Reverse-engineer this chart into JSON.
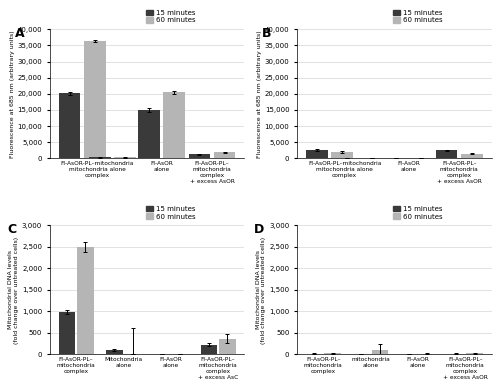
{
  "A": {
    "title": "A",
    "ylabel": "Fluorescence at 685 nm (arbitrary units)",
    "ylim": [
      0,
      40000
    ],
    "yticks": [
      0,
      5000,
      10000,
      15000,
      20000,
      25000,
      30000,
      35000,
      40000
    ],
    "groups": [
      {
        "label": "Fl-AsOR-PL–mitochondria",
        "bar15": 20200,
        "bar60": 36500,
        "err15": 400,
        "err60": 300
      },
      {
        "label": "mitochondria alone",
        "bar15": 300,
        "bar60": 300,
        "err15": 50,
        "err60": 50
      },
      {
        "label": "Fl-AsOR\nalone",
        "bar15": 15000,
        "bar60": 20500,
        "err15": 500,
        "err60": 500
      },
      {
        "label": "Fl-AsOR-PL–\nmitochondria\ncomplex\n+ excess AsOR",
        "bar15": 1300,
        "bar60": 1900,
        "err15": 150,
        "err60": 150
      }
    ],
    "group_labels": [
      "Fl-AsOR-PL–mitochondria\nmitochondria alone\ncomplex",
      "Fl-AsOR\nalone",
      "Fl-AsOR-PL–\nmitochondria\ncomplex\n+ excess AsOR"
    ],
    "group_positions": [
      0,
      1,
      2,
      3
    ],
    "xtick_positions": [
      0.5,
      2,
      3
    ],
    "xtick_labels": [
      "Fl-AsOR-PL–mitochondria\nmitochondria alone\ncomplex",
      "Fl-AsOR\nalone",
      "Fl-AsOR-PL–\nmitochondria\ncomplex\n+ excess AsOR"
    ]
  },
  "B": {
    "title": "B",
    "ylabel": "Fluorescence at 685 nm (arbitrary units)",
    "ylim": [
      0,
      40000
    ],
    "yticks": [
      0,
      5000,
      10000,
      15000,
      20000,
      25000,
      30000,
      35000,
      40000
    ],
    "groups": [
      {
        "label": "Fl-AsOR-PL–mitochondria",
        "bar15": 2600,
        "bar60": 2000,
        "err15": 200,
        "err60": 200
      },
      {
        "label": "mitochondria alone",
        "bar15": 100,
        "bar60": 100,
        "err15": 30,
        "err60": 30
      },
      {
        "label": "Fl-AsOR\nalone",
        "bar15": 150,
        "bar60": 100,
        "err15": 30,
        "err60": 30
      },
      {
        "label": "Fl-AsOR-PL–\nmitochondria\ncomplex\n+ excess AsOR",
        "bar15": 2500,
        "bar60": 1500,
        "err15": 200,
        "err60": 200
      }
    ],
    "xtick_positions": [
      0.5,
      2,
      3
    ],
    "xtick_labels": [
      "Fl-AsOR-PL–mitochondria\nmitochondria alone\ncomplex",
      "Fl-AsOR\nalone",
      "Fl-AsOR-PL–\nmitochondria\ncomplex\n+ excess AsOR"
    ]
  },
  "C": {
    "title": "C",
    "ylabel": "Mitochondrial DNA levels\n(fold change over untreated cells)",
    "ylim": [
      0,
      3000
    ],
    "yticks": [
      0,
      500,
      1000,
      1500,
      2000,
      2500,
      3000
    ],
    "categories": [
      "Fl-AsOR-PL–\nmitochondria\ncomplex",
      "Mitochondria\nalone",
      "Fl-AsOR\nalone",
      "Fl-AsOR-PL–\nmitochondria\ncomplex\n+ excess AsC"
    ],
    "bar15": [
      980,
      100,
      10,
      230
    ],
    "bar60": [
      2500,
      0,
      0,
      370
    ],
    "err15": [
      50,
      30,
      5,
      30
    ],
    "err60": [
      120,
      0,
      0,
      100
    ],
    "mito_alone_60_upper_err": 620
  },
  "D": {
    "title": "D",
    "ylabel": "Mitochondrial DNA levels\n(fold change over untreated cells)",
    "ylim": [
      0,
      3000
    ],
    "yticks": [
      0,
      500,
      1000,
      1500,
      2000,
      2500,
      3000
    ],
    "categories": [
      "Fl-AsOR-PL–\nmitochondria\ncomplex",
      "mitochondria\nalone",
      "Fl-AsOR\nalone",
      "Fl-AsOR-PL–\nmitochondria\ncomplex\n+ excess AsOR"
    ],
    "bar15": [
      20,
      0,
      10,
      20
    ],
    "bar60": [
      30,
      100,
      20,
      30
    ],
    "err15": [
      10,
      0,
      5,
      10
    ],
    "err60": [
      10,
      150,
      10,
      10
    ]
  },
  "color15": "#3a3a3a",
  "color60": "#b5b5b5",
  "legend15": "15 minutes",
  "legend60": "60 minutes"
}
